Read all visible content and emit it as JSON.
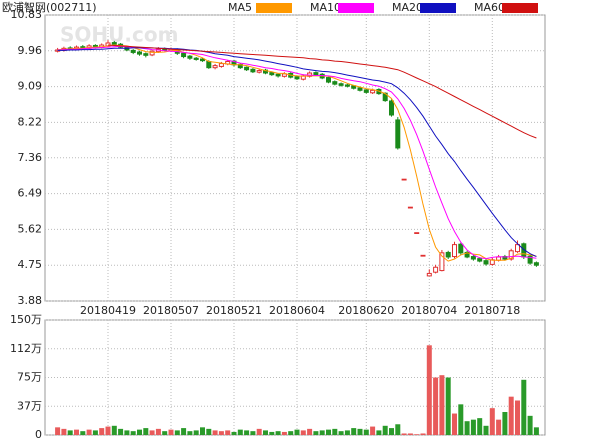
{
  "chart_data": {
    "type": "candlestick",
    "title": "欧浦智网(002711)",
    "watermark": "SOHU.com",
    "categories": [
      null,
      null,
      null,
      null,
      null,
      null,
      null,
      null,
      "20180419",
      null,
      null,
      null,
      null,
      null,
      null,
      null,
      null,
      null,
      "20180507",
      null,
      null,
      null,
      null,
      null,
      null,
      null,
      null,
      null,
      "20180521",
      null,
      null,
      null,
      null,
      null,
      null,
      null,
      null,
      null,
      "20180604",
      null,
      null,
      null,
      null,
      null,
      null,
      null,
      null,
      null,
      null,
      "20180620",
      null,
      null,
      null,
      null,
      null,
      null,
      null,
      null,
      null,
      "20180704",
      null,
      null,
      null,
      null,
      null,
      null,
      null,
      null,
      null,
      "20180718",
      null,
      null,
      null,
      null,
      null,
      null,
      null
    ],
    "open": [
      9.95,
      9.97,
      10.03,
      10.0,
      10.06,
      10.02,
      10.09,
      10.04,
      10.08,
      10.16,
      10.12,
      10.04,
      9.97,
      9.93,
      9.89,
      9.86,
      9.94,
      10.01,
      9.96,
      9.99,
      9.9,
      9.83,
      9.78,
      9.76,
      9.7,
      9.55,
      9.58,
      9.64,
      9.71,
      9.63,
      9.56,
      9.51,
      9.44,
      9.49,
      9.43,
      9.39,
      9.34,
      9.41,
      9.33,
      9.27,
      9.34,
      9.43,
      9.39,
      9.31,
      9.21,
      9.16,
      9.13,
      9.11,
      9.06,
      9.01,
      8.94,
      9.02,
      8.93,
      8.74,
      8.28,
      6.84,
      6.16,
      5.54,
      4.99,
      4.49,
      4.58,
      4.62,
      5.06,
      4.96,
      5.26,
      5.06,
      4.96,
      4.91,
      4.86,
      4.77,
      4.87,
      4.96,
      4.9,
      5.08,
      5.27,
      4.97,
      4.81
    ],
    "high": [
      10.03,
      10.06,
      10.07,
      10.09,
      10.1,
      10.12,
      10.12,
      10.14,
      10.22,
      10.2,
      10.15,
      10.07,
      10.0,
      9.96,
      9.92,
      9.99,
      10.05,
      10.04,
      10.04,
      10.02,
      9.93,
      9.86,
      9.81,
      9.79,
      9.73,
      9.64,
      9.69,
      9.74,
      9.74,
      9.66,
      9.58,
      9.54,
      9.52,
      9.52,
      9.46,
      9.42,
      9.44,
      9.44,
      9.36,
      9.39,
      9.46,
      9.46,
      9.42,
      9.33,
      9.24,
      9.19,
      9.16,
      9.13,
      9.09,
      9.04,
      9.04,
      9.05,
      8.95,
      8.78,
      8.35,
      6.84,
      6.16,
      5.54,
      4.99,
      4.65,
      4.76,
      5.12,
      5.1,
      5.32,
      5.3,
      5.1,
      5.0,
      4.94,
      4.9,
      4.93,
      5.0,
      5.0,
      5.15,
      5.35,
      5.3,
      5.0,
      4.84
    ],
    "low": [
      9.92,
      9.94,
      9.97,
      9.98,
      10.0,
      10.0,
      10.02,
      10.02,
      10.05,
      10.08,
      10.02,
      9.95,
      9.88,
      9.84,
      9.8,
      9.83,
      9.91,
      9.95,
      9.93,
      9.86,
      9.78,
      9.74,
      9.72,
      9.69,
      9.52,
      9.51,
      9.55,
      9.61,
      9.58,
      9.52,
      9.47,
      9.42,
      9.41,
      9.39,
      9.35,
      9.31,
      9.31,
      9.29,
      9.25,
      9.24,
      9.31,
      9.35,
      9.27,
      9.17,
      9.12,
      9.09,
      9.07,
      9.02,
      8.97,
      8.92,
      8.91,
      8.89,
      8.72,
      8.36,
      7.56,
      6.84,
      6.16,
      5.54,
      4.99,
      4.49,
      4.55,
      4.6,
      4.9,
      4.92,
      5.0,
      4.92,
      4.86,
      4.82,
      4.74,
      4.74,
      4.84,
      4.86,
      4.86,
      5.05,
      4.9,
      4.76,
      4.71
    ],
    "close": [
      9.98,
      10.02,
      10.0,
      10.05,
      10.03,
      10.08,
      10.05,
      10.1,
      10.15,
      10.12,
      10.05,
      9.98,
      9.92,
      9.88,
      9.85,
      9.95,
      10.0,
      9.98,
      10.0,
      9.9,
      9.82,
      9.78,
      9.75,
      9.72,
      9.55,
      9.6,
      9.65,
      9.7,
      9.62,
      9.55,
      9.5,
      9.45,
      9.48,
      9.42,
      9.38,
      9.35,
      9.4,
      9.32,
      9.28,
      9.35,
      9.42,
      9.38,
      9.3,
      9.2,
      9.15,
      9.12,
      9.1,
      9.05,
      9.0,
      8.95,
      9.0,
      8.92,
      8.75,
      8.4,
      7.6,
      6.84,
      6.16,
      5.54,
      4.99,
      4.55,
      4.7,
      5.05,
      4.95,
      5.25,
      5.05,
      4.95,
      4.9,
      4.85,
      4.78,
      4.88,
      4.95,
      4.9,
      5.1,
      5.25,
      4.95,
      4.8,
      4.75
    ],
    "up_color": "#e03030",
    "down_color": "#1a8a1a",
    "ylim": [
      3.88,
      10.83
    ],
    "yticks": [
      3.88,
      4.75,
      5.62,
      6.49,
      7.36,
      8.22,
      9.09,
      9.96,
      10.83
    ],
    "grid": true,
    "series": [
      {
        "name": "MA5",
        "color": "#ff9900",
        "values": [
          9.99,
          10.0,
          10.01,
          10.02,
          10.02,
          10.04,
          10.05,
          10.06,
          10.08,
          10.1,
          10.09,
          10.08,
          10.04,
          9.99,
          9.94,
          9.92,
          9.92,
          9.93,
          9.96,
          9.97,
          9.92,
          9.9,
          9.85,
          9.79,
          9.7,
          9.68,
          9.66,
          9.64,
          9.62,
          9.62,
          9.6,
          9.56,
          9.52,
          9.48,
          9.45,
          9.41,
          9.41,
          9.37,
          9.35,
          9.34,
          9.35,
          9.35,
          9.35,
          9.34,
          9.29,
          9.23,
          9.17,
          9.12,
          9.08,
          9.04,
          9.02,
          8.98,
          8.92,
          8.8,
          8.53,
          8.1,
          7.55,
          6.91,
          6.23,
          5.62,
          5.19,
          4.97,
          4.85,
          4.9,
          5.0,
          5.05,
          5.02,
          5.0,
          4.91,
          4.87,
          4.87,
          4.87,
          4.92,
          5.02,
          5.03,
          5.0,
          4.97
        ]
      },
      {
        "name": "MA10",
        "color": "#ff00ff",
        "values": [
          9.98,
          9.99,
          10.0,
          10.0,
          10.01,
          10.02,
          10.03,
          10.04,
          10.05,
          10.06,
          10.07,
          10.06,
          10.05,
          10.03,
          10.01,
          9.99,
          9.98,
          9.96,
          9.95,
          9.94,
          9.92,
          9.9,
          9.89,
          9.87,
          9.83,
          9.79,
          9.76,
          9.73,
          9.7,
          9.66,
          9.64,
          9.61,
          9.58,
          9.55,
          9.53,
          9.5,
          9.48,
          9.45,
          9.41,
          9.38,
          9.37,
          9.36,
          9.36,
          9.35,
          9.33,
          9.29,
          9.26,
          9.23,
          9.21,
          9.17,
          9.13,
          9.1,
          9.04,
          8.96,
          8.79,
          8.56,
          8.27,
          7.92,
          7.52,
          7.08,
          6.65,
          6.26,
          5.88,
          5.57,
          5.31,
          5.12,
          5.0,
          4.93,
          4.91,
          4.94,
          4.96,
          4.95,
          4.96,
          4.97,
          4.95,
          4.94,
          4.92
        ]
      },
      {
        "name": "MA20",
        "color": "#1010c0",
        "values": [
          9.97,
          9.97,
          9.98,
          9.98,
          9.99,
          9.99,
          10.0,
          10.0,
          10.01,
          10.02,
          10.02,
          10.02,
          10.03,
          10.03,
          10.03,
          10.03,
          10.02,
          10.02,
          10.01,
          10.01,
          10.0,
          9.98,
          9.97,
          9.95,
          9.92,
          9.89,
          9.87,
          9.85,
          9.82,
          9.8,
          9.78,
          9.76,
          9.74,
          9.71,
          9.68,
          9.65,
          9.62,
          9.59,
          9.56,
          9.52,
          9.5,
          9.48,
          9.46,
          9.45,
          9.43,
          9.4,
          9.37,
          9.34,
          9.31,
          9.28,
          9.25,
          9.23,
          9.2,
          9.16,
          9.06,
          8.93,
          8.77,
          8.58,
          8.37,
          8.13,
          7.89,
          7.68,
          7.46,
          7.27,
          7.05,
          6.84,
          6.64,
          6.43,
          6.22,
          6.01,
          5.81,
          5.61,
          5.42,
          5.27,
          5.13,
          5.03,
          4.96
        ]
      },
      {
        "name": "MA60",
        "color": "#d01010",
        "values": [
          null,
          null,
          null,
          null,
          null,
          null,
          null,
          null,
          10.1,
          10.09,
          10.08,
          10.07,
          10.06,
          10.05,
          10.04,
          10.03,
          10.02,
          10.01,
          10.0,
          9.99,
          9.98,
          9.97,
          9.96,
          9.95,
          9.94,
          9.93,
          9.92,
          9.91,
          9.9,
          9.89,
          9.88,
          9.87,
          9.86,
          9.85,
          9.84,
          9.83,
          9.82,
          9.81,
          9.8,
          9.79,
          9.77,
          9.76,
          9.74,
          9.73,
          9.71,
          9.7,
          9.68,
          9.66,
          9.64,
          9.62,
          9.6,
          9.58,
          9.56,
          9.53,
          9.5,
          9.44,
          9.37,
          9.3,
          9.23,
          9.16,
          9.09,
          9.01,
          8.93,
          8.85,
          8.77,
          8.69,
          8.61,
          8.53,
          8.45,
          8.37,
          8.29,
          8.21,
          8.13,
          8.05,
          7.97,
          7.9,
          7.84
        ]
      }
    ],
    "volume": {
      "values": [
        10,
        8,
        6,
        7,
        5,
        7,
        6,
        9,
        11,
        12,
        8,
        6,
        5,
        7,
        9,
        6,
        8,
        5,
        7,
        6,
        9,
        5,
        6,
        10,
        8,
        6,
        5,
        6,
        4,
        7,
        6,
        5,
        8,
        6,
        4,
        5,
        4,
        5,
        7,
        6,
        8,
        5,
        6,
        7,
        8,
        5,
        6,
        9,
        8,
        7,
        11,
        6,
        12,
        9,
        14,
        2,
        2,
        1,
        2,
        117,
        75,
        78,
        75,
        28,
        40,
        18,
        20,
        22,
        12,
        35,
        20,
        30,
        50,
        45,
        72,
        25,
        10
      ],
      "ylim": [
        0,
        150
      ],
      "yticks": [
        0,
        {
          "value": 37.5,
          "label": "37万"
        },
        {
          "value": 75,
          "label": "75万"
        },
        {
          "value": 112.5,
          "label": "112万"
        },
        {
          "value": 150,
          "label": "150万"
        }
      ]
    }
  }
}
